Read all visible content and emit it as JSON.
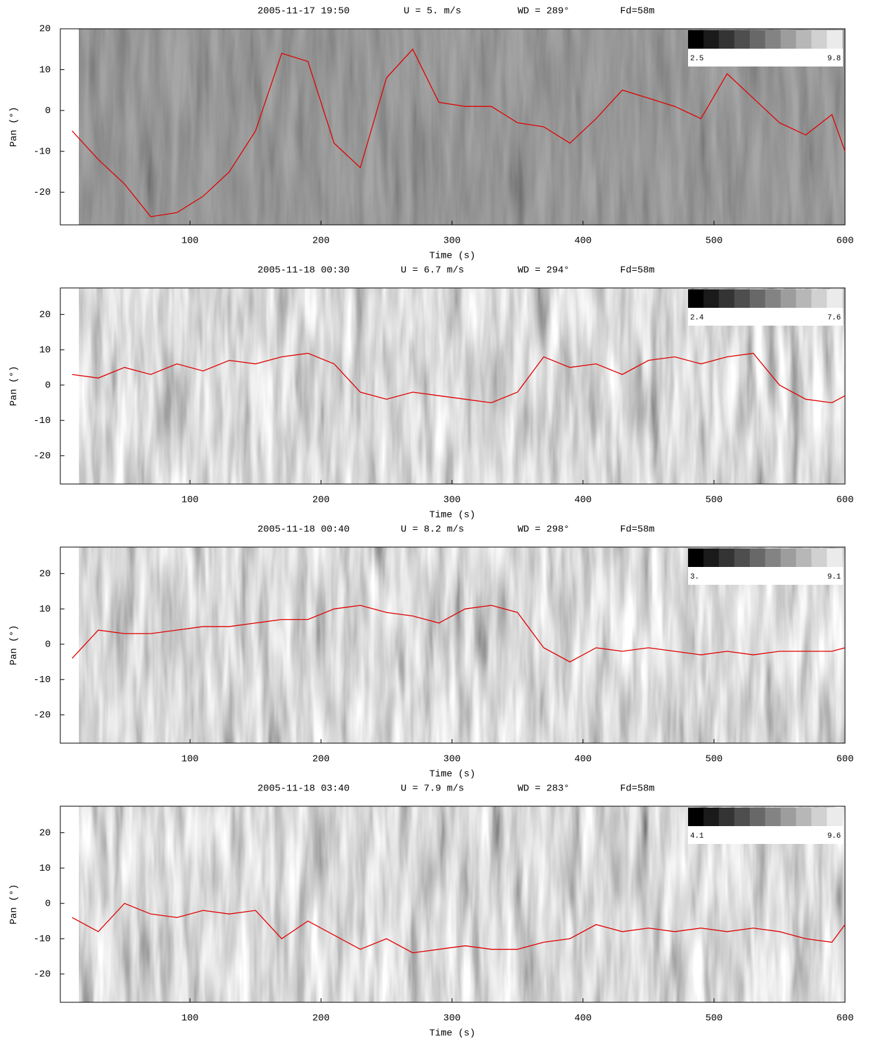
{
  "chart_data": [
    {
      "type": "line",
      "title_parts": [
        "2005-11-17 19:50",
        "U = 5. m/s",
        "WD = 289°",
        "Fd=58m"
      ],
      "x_label": "Time (s)",
      "y_label": "Pan (°)",
      "colorbar_labels": [
        "2.5",
        "9.8"
      ],
      "xlim": [
        1,
        600
      ],
      "ylim": [
        -28,
        20
      ],
      "xticks": [
        100,
        200,
        300,
        400,
        500,
        600
      ],
      "yticks": [
        -20,
        -10,
        0,
        10,
        20
      ],
      "color": "#e00000",
      "x": [
        10,
        30,
        50,
        70,
        90,
        110,
        130,
        150,
        170,
        190,
        210,
        230,
        250,
        270,
        290,
        310,
        330,
        350,
        370,
        390,
        410,
        430,
        450,
        470,
        490,
        510,
        530,
        550,
        570,
        590,
        600
      ],
      "values": [
        -5,
        -12,
        -18,
        -26,
        -25,
        -21,
        -15,
        -5,
        14,
        12,
        -8,
        -14,
        8,
        15,
        2,
        1,
        1,
        -3,
        -4,
        -8,
        -2,
        5,
        3,
        1,
        -2,
        9,
        3,
        -3,
        -6,
        -1,
        -10
      ]
    },
    {
      "type": "line",
      "title_parts": [
        "2005-11-18 00:30",
        "U = 6.7 m/s",
        "WD = 294°",
        "Fd=58m"
      ],
      "x_label": "Time (s)",
      "y_label": "Pan (°)",
      "colorbar_labels": [
        "2.4",
        "7.6"
      ],
      "xlim": [
        1,
        600
      ],
      "ylim": [
        -28,
        27.5
      ],
      "xticks": [
        100,
        200,
        300,
        400,
        500,
        600
      ],
      "yticks": [
        -20,
        -10,
        0,
        10,
        20
      ],
      "color": "#e00000",
      "x": [
        10,
        30,
        50,
        70,
        90,
        110,
        130,
        150,
        170,
        190,
        210,
        230,
        250,
        270,
        290,
        310,
        330,
        350,
        370,
        390,
        410,
        430,
        450,
        470,
        490,
        510,
        530,
        550,
        570,
        590,
        600
      ],
      "values": [
        3,
        2,
        5,
        3,
        6,
        4,
        7,
        6,
        8,
        9,
        6,
        -2,
        -4,
        -2,
        -3,
        -4,
        -5,
        -2,
        8,
        5,
        6,
        3,
        7,
        8,
        6,
        8,
        9,
        0,
        -4,
        -5,
        -3
      ]
    },
    {
      "type": "line",
      "title_parts": [
        "2005-11-18 00:40",
        "U = 8.2 m/s",
        "WD = 298°",
        "Fd=58m"
      ],
      "x_label": "Time (s)",
      "y_label": "Pan (°)",
      "colorbar_labels": [
        "3.",
        "9.1"
      ],
      "xlim": [
        1,
        600
      ],
      "ylim": [
        -28,
        27.5
      ],
      "xticks": [
        100,
        200,
        300,
        400,
        500,
        600
      ],
      "yticks": [
        -20,
        -10,
        0,
        10,
        20
      ],
      "color": "#e00000",
      "x": [
        10,
        30,
        50,
        70,
        90,
        110,
        130,
        150,
        170,
        190,
        210,
        230,
        250,
        270,
        290,
        310,
        330,
        350,
        370,
        390,
        410,
        430,
        450,
        470,
        490,
        510,
        530,
        550,
        570,
        590,
        600
      ],
      "values": [
        -4,
        4,
        3,
        3,
        4,
        5,
        5,
        6,
        7,
        7,
        10,
        11,
        9,
        8,
        6,
        10,
        11,
        9,
        -1,
        -5,
        -1,
        -2,
        -1,
        -2,
        -3,
        -2,
        -3,
        -2,
        -2,
        -2,
        -1
      ]
    },
    {
      "type": "line",
      "title_parts": [
        "2005-11-18 03:40",
        "U = 7.9 m/s",
        "WD = 283°",
        "Fd=58m"
      ],
      "x_label": "Time (s)",
      "y_label": "Pan (°)",
      "colorbar_labels": [
        "4.1",
        "9.6"
      ],
      "xlim": [
        1,
        600
      ],
      "ylim": [
        -28,
        27.5
      ],
      "xticks": [
        100,
        200,
        300,
        400,
        500,
        600
      ],
      "yticks": [
        -20,
        -10,
        0,
        10,
        20
      ],
      "color": "#e00000",
      "x": [
        10,
        30,
        50,
        70,
        90,
        110,
        130,
        150,
        170,
        190,
        210,
        230,
        250,
        270,
        290,
        310,
        330,
        350,
        370,
        390,
        410,
        430,
        450,
        470,
        490,
        510,
        530,
        550,
        570,
        590,
        600
      ],
      "values": [
        -4,
        -8,
        0,
        -3,
        -4,
        -2,
        -3,
        -2,
        -10,
        -5,
        -9,
        -13,
        -10,
        -14,
        -13,
        -12,
        -13,
        -13,
        -11,
        -10,
        -6,
        -8,
        -7,
        -8,
        -7,
        -8,
        -7,
        -8,
        -10,
        -11,
        -6
      ]
    }
  ]
}
